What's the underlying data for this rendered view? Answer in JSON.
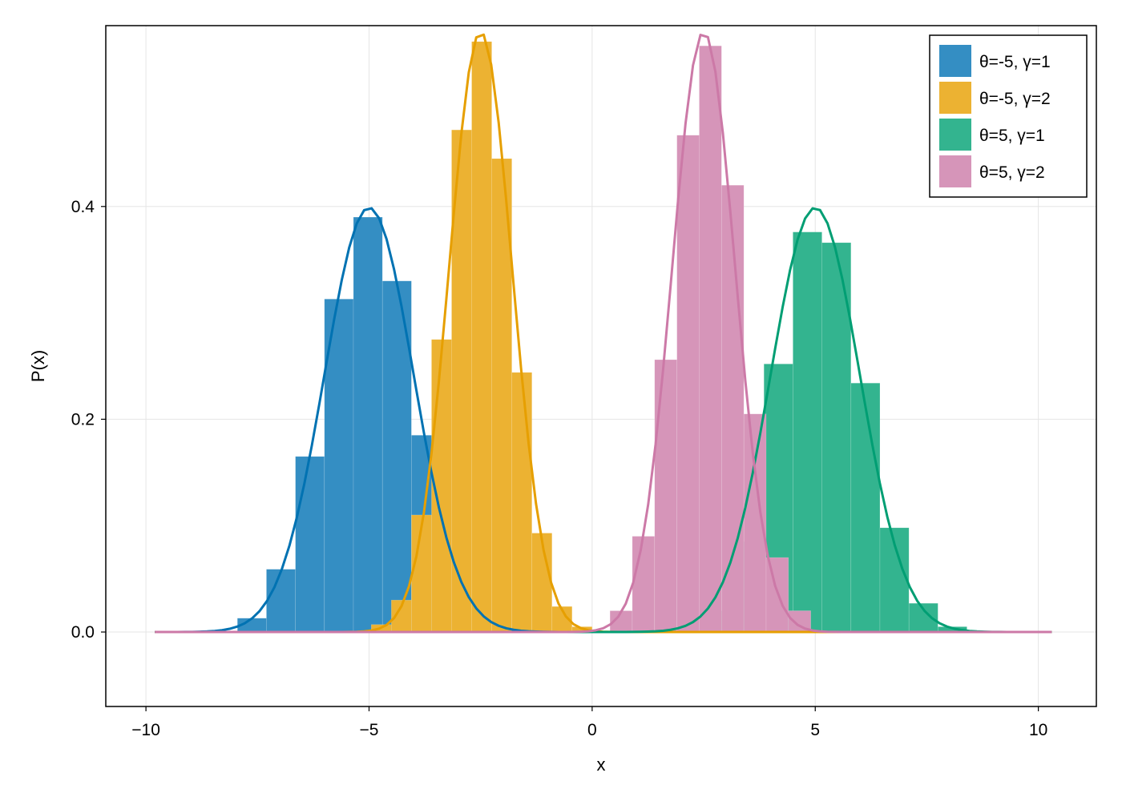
{
  "chart_data": {
    "type": "bar",
    "xlabel": "x",
    "ylabel": "P(x)",
    "xlim": [
      -10.9,
      11.3
    ],
    "ylim": [
      -0.07,
      0.57
    ],
    "x_ticks": [
      -10,
      -5,
      0,
      5,
      10
    ],
    "x_tick_labels": [
      "−10",
      "−5",
      "0",
      "5",
      "10"
    ],
    "y_ticks": [
      0.0,
      0.2,
      0.4
    ],
    "y_tick_labels": [
      "0.0",
      "0.2",
      "0.4"
    ],
    "grid": true,
    "legend_position": "top-right",
    "series": [
      {
        "name": "θ=-5, γ=1",
        "color": "#0072b2",
        "bar_color": "#348ec3",
        "mean": -5,
        "std": 1,
        "bin_width": 0.65,
        "bin_starts": [
          -7.95,
          -7.3,
          -6.65,
          -6.0,
          -5.35,
          -4.7,
          -4.05,
          -3.4
        ],
        "values": [
          0.013,
          0.059,
          0.165,
          0.313,
          0.39,
          0.33,
          0.185,
          0.07
        ]
      },
      {
        "name": "θ=-5, γ=2",
        "color": "#e69f00",
        "bar_color": "#ecb232",
        "mean": -2.5,
        "std": 0.707,
        "bin_width": 0.45,
        "bin_starts": [
          -4.95,
          -4.5,
          -4.05,
          -3.6,
          -3.15,
          -2.7,
          -2.25,
          -1.8,
          -1.35,
          -0.9,
          -0.45
        ],
        "values": [
          0.007,
          0.03,
          0.11,
          0.275,
          0.472,
          0.555,
          0.445,
          0.244,
          0.093,
          0.024,
          0.005
        ]
      },
      {
        "name": "θ=5, γ=1",
        "color": "#009e73",
        "bar_color": "#33b48f",
        "mean": 5,
        "std": 1,
        "bin_width": 0.65,
        "bin_starts": [
          1.9,
          2.55,
          3.2,
          3.85,
          4.5,
          5.15,
          5.8,
          6.45,
          7.1,
          7.75
        ],
        "values": [
          0.004,
          0.02,
          0.085,
          0.252,
          0.376,
          0.366,
          0.234,
          0.098,
          0.027,
          0.005
        ]
      },
      {
        "name": "θ=5, γ=2",
        "color": "#cc79a7",
        "bar_color": "#d695b9",
        "mean": 2.5,
        "std": 0.707,
        "bin_width": 0.5,
        "bin_starts": [
          0.4,
          0.9,
          1.4,
          1.9,
          2.4,
          2.9,
          3.4,
          3.9,
          4.4
        ],
        "values": [
          0.02,
          0.09,
          0.256,
          0.467,
          0.551,
          0.42,
          0.205,
          0.07,
          0.02
        ]
      }
    ]
  }
}
